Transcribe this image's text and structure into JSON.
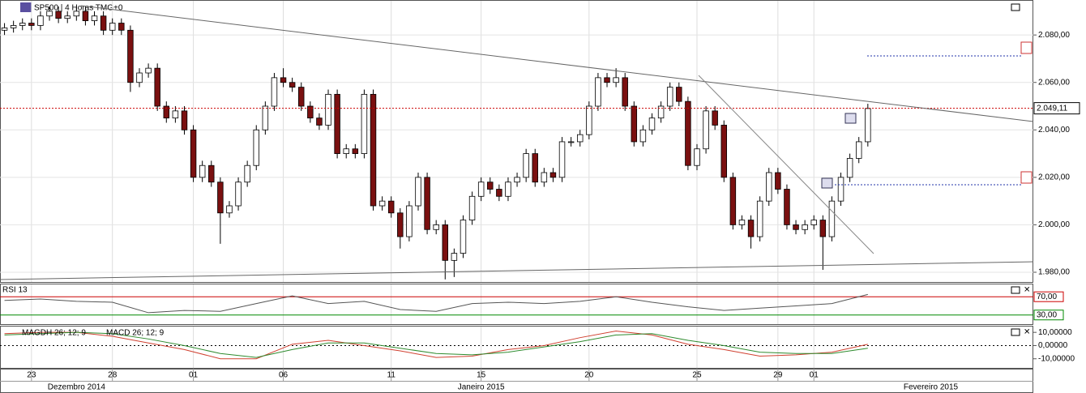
{
  "chart_data": {
    "type": "candlestick",
    "title": "SP500 | 4 Horas TMG+0",
    "open": [
      2082,
      2083,
      2084,
      2085,
      2084,
      2088,
      2090,
      2087,
      2088,
      2090,
      2086,
      2088,
      2082,
      2085,
      2082,
      2060,
      2064,
      2066,
      2050,
      2045,
      2048,
      2040,
      2020,
      2025,
      2018,
      2005,
      2008,
      2018,
      2025,
      2040,
      2050,
      2062,
      2060,
      2058,
      2050,
      2045,
      2042,
      2055,
      2030,
      2032,
      2030,
      2055,
      2008,
      2010,
      2005,
      1995,
      2008,
      2020,
      1998,
      2000,
      1985,
      1988,
      2002,
      2012,
      2018,
      2015,
      2012,
      2018,
      2020,
      2030,
      2018,
      2022,
      2020,
      2035,
      2035,
      2038,
      2050,
      2062,
      2060,
      2062,
      2050,
      2035,
      2040,
      2045,
      2050,
      2058,
      2052,
      2025,
      2032,
      2048,
      2042,
      2020,
      2000,
      2002,
      1995,
      2010,
      2022,
      2015,
      2000,
      1998,
      2000,
      2002,
      1995,
      2010,
      2020,
      2028,
      2035
    ],
    "high": [
      2085,
      2086,
      2087,
      2087,
      2090,
      2092,
      2092,
      2090,
      2092,
      2092,
      2090,
      2090,
      2087,
      2087,
      2084,
      2066,
      2068,
      2068,
      2052,
      2050,
      2050,
      2042,
      2027,
      2027,
      2020,
      2010,
      2020,
      2027,
      2042,
      2052,
      2064,
      2066,
      2062,
      2060,
      2052,
      2047,
      2057,
      2057,
      2034,
      2034,
      2057,
      2057,
      2012,
      2012,
      2007,
      2010,
      2022,
      2022,
      2002,
      2002,
      1990,
      2004,
      2014,
      2020,
      2020,
      2017,
      2020,
      2022,
      2032,
      2032,
      2024,
      2024,
      2037,
      2037,
      2040,
      2052,
      2064,
      2064,
      2066,
      2064,
      2052,
      2042,
      2047,
      2052,
      2060,
      2060,
      2054,
      2034,
      2050,
      2050,
      2044,
      2022,
      2004,
      2004,
      2012,
      2024,
      2024,
      2017,
      2002,
      2002,
      2004,
      2004,
      2012,
      2022,
      2030,
      2037,
      2051
    ],
    "low": [
      2080,
      2081,
      2082,
      2082,
      2082,
      2086,
      2085,
      2085,
      2086,
      2084,
      2084,
      2080,
      2080,
      2080,
      2056,
      2058,
      2062,
      2048,
      2043,
      2043,
      2038,
      2018,
      2018,
      2016,
      1992,
      2003,
      2006,
      2016,
      2023,
      2038,
      2048,
      2058,
      2056,
      2048,
      2043,
      2040,
      2040,
      2028,
      2028,
      2028,
      2028,
      2006,
      2006,
      2003,
      1990,
      1993,
      2006,
      1996,
      1996,
      1977,
      1978,
      1986,
      2000,
      2010,
      2013,
      2010,
      2010,
      2016,
      2018,
      2016,
      2016,
      2018,
      2018,
      2033,
      2033,
      2036,
      2048,
      2058,
      2058,
      2048,
      2033,
      2033,
      2038,
      2043,
      2048,
      2050,
      2023,
      2023,
      2030,
      2040,
      2018,
      1998,
      1998,
      1990,
      1993,
      2008,
      2013,
      1998,
      1996,
      1996,
      1998,
      1981,
      1993,
      2008,
      2018,
      2026,
      2033
    ],
    "close": [
      2083,
      2084,
      2085,
      2084,
      2088,
      2090,
      2087,
      2088,
      2090,
      2086,
      2088,
      2082,
      2085,
      2082,
      2060,
      2064,
      2066,
      2050,
      2045,
      2048,
      2040,
      2020,
      2025,
      2018,
      2005,
      2008,
      2018,
      2025,
      2040,
      2050,
      2062,
      2060,
      2058,
      2050,
      2045,
      2042,
      2055,
      2030,
      2032,
      2030,
      2055,
      2008,
      2010,
      2005,
      1995,
      2008,
      2020,
      1998,
      2000,
      1985,
      1988,
      2002,
      2012,
      2018,
      2015,
      2012,
      2018,
      2020,
      2030,
      2018,
      2022,
      2020,
      2035,
      2035,
      2038,
      2050,
      2062,
      2060,
      2062,
      2050,
      2035,
      2040,
      2045,
      2050,
      2058,
      2052,
      2025,
      2032,
      2048,
      2042,
      2020,
      2000,
      2002,
      1995,
      2010,
      2022,
      2015,
      2000,
      1998,
      2000,
      2002,
      1995,
      2010,
      2020,
      2028,
      2035,
      2049
    ],
    "up_color": "#ffffff",
    "down_color": "#7a1010",
    "xlim": [
      -0.5,
      114.4
    ],
    "xticks": [
      {
        "value": 3,
        "label": "23"
      },
      {
        "value": 12,
        "label": "28"
      },
      {
        "value": 21,
        "label": "01"
      },
      {
        "value": 31,
        "label": "06"
      },
      {
        "value": 43,
        "label": "11"
      },
      {
        "value": 53,
        "label": "15"
      },
      {
        "value": 65,
        "label": "20"
      },
      {
        "value": 77,
        "label": "25"
      },
      {
        "value": 86,
        "label": "29"
      },
      {
        "value": 90,
        "label": "01"
      }
    ],
    "months": [
      {
        "value": 8,
        "label": "Dezembro 2014"
      },
      {
        "value": 53,
        "label": "Janeiro 2015"
      },
      {
        "value": 103,
        "label": "Fevereiro 2015"
      }
    ],
    "ylim": [
      1975.9,
      2094.4
    ],
    "yticks": [
      {
        "value": 1980,
        "label": "1.980,00"
      },
      {
        "value": 2000,
        "label": "2.000,00"
      },
      {
        "value": 2020,
        "label": "2.020,00"
      },
      {
        "value": 2040,
        "label": "2.040,00"
      },
      {
        "value": 2060,
        "label": "2.060,00"
      },
      {
        "value": 2080,
        "label": "2.080,00"
      }
    ],
    "last_price": {
      "value": 2049.11,
      "label": "2.049,11"
    },
    "grid": true,
    "rsi": {
      "name": "RSI 13",
      "color": "#555555",
      "x": [
        0,
        4,
        8,
        12,
        16,
        20,
        24,
        28,
        32,
        36,
        40,
        44,
        48,
        52,
        56,
        60,
        64,
        68,
        72,
        76,
        80,
        84,
        88,
        92,
        96
      ],
      "values": [
        62,
        65,
        60,
        58,
        35,
        40,
        38,
        55,
        72,
        55,
        60,
        42,
        38,
        55,
        58,
        55,
        60,
        70,
        58,
        48,
        40,
        45,
        50,
        55,
        75
      ],
      "ylim": [
        10,
        97
      ],
      "yticks": [
        {
          "value": 70,
          "label": "70,00"
        },
        {
          "value": 30,
          "label": "30,00"
        }
      ]
    },
    "macd": {
      "ylim": [
        -16.9,
        14.4
      ],
      "yticks": [
        {
          "value": 10,
          "label": "10,00000"
        },
        {
          "value": 0,
          "label": "0,00000"
        },
        {
          "value": -10,
          "label": "-10,00000"
        }
      ],
      "x": [
        0,
        4,
        8,
        12,
        16,
        20,
        24,
        28,
        32,
        36,
        40,
        44,
        48,
        52,
        56,
        60,
        64,
        68,
        72,
        76,
        80,
        84,
        88,
        92,
        96
      ],
      "series": [
        {
          "name": "MAGDH 26; 12; 9",
          "color": "#d04030",
          "values": [
            9,
            10,
            10,
            7,
            2,
            -3,
            -10,
            -10,
            1,
            4,
            0,
            -4,
            -9,
            -8,
            -3,
            0,
            6,
            11,
            8,
            1,
            -3,
            -8,
            -7,
            -5,
            1
          ]
        },
        {
          "name": "MACD 26; 12; 9",
          "color": "#2e8b2e",
          "values": [
            8,
            9,
            10,
            9,
            5,
            0,
            -6,
            -9,
            -3,
            2,
            2,
            -2,
            -6,
            -7,
            -5,
            -1,
            3,
            8,
            9,
            4,
            0,
            -5,
            -6,
            -6,
            -2
          ]
        }
      ]
    }
  }
}
